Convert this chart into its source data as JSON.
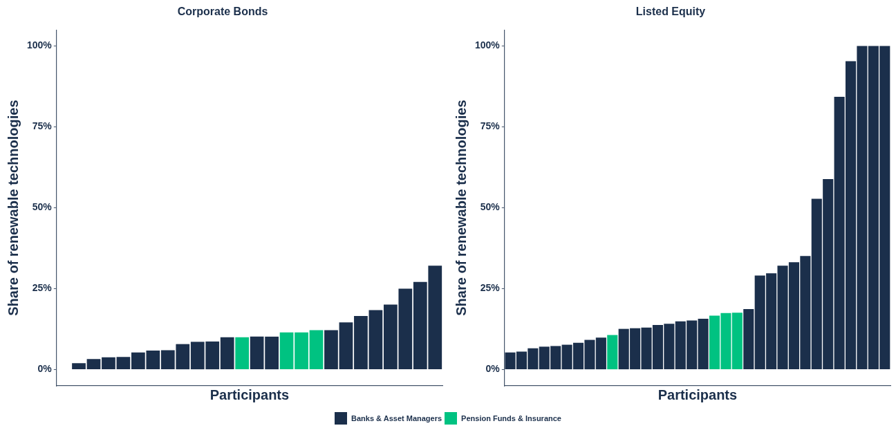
{
  "chart_data": [
    {
      "type": "bar",
      "title": "Corporate Bonds",
      "xlabel": "Participants",
      "ylabel": "Share of renewable technologies",
      "stacked": true,
      "legend": "bottom",
      "grid": false,
      "categories": [
        null,
        null,
        null,
        null,
        null,
        null,
        null,
        null,
        null,
        null,
        null,
        null,
        null,
        null,
        null,
        null,
        null,
        null,
        null,
        null,
        null,
        null,
        null,
        null,
        null,
        null
      ],
      "series": [
        {
          "name": "Banks & Asset Managers",
          "color": "#1b2f4b",
          "values": [
            0,
            2.0,
            3.3,
            3.8,
            3.9,
            5.3,
            5.9,
            6.0,
            7.9,
            8.6,
            8.7,
            10.0,
            null,
            10.2,
            10.2,
            null,
            null,
            null,
            12.2,
            14.6,
            16.6,
            18.4,
            20.1,
            25.0,
            27.1,
            32.1
          ]
        },
        {
          "name": "Pension Funds & Insurance",
          "color": "#00c281",
          "values": [
            null,
            null,
            null,
            null,
            null,
            null,
            null,
            null,
            null,
            null,
            null,
            null,
            10.0,
            null,
            null,
            11.5,
            11.5,
            12.2,
            null,
            null,
            null,
            null,
            null,
            null,
            null,
            null
          ]
        }
      ],
      "ylim": [
        -5,
        105
      ],
      "yticks": [
        {
          "value": 0,
          "label": "0%"
        },
        {
          "value": 25,
          "label": "25%"
        },
        {
          "value": 50,
          "label": "50%"
        },
        {
          "value": 75,
          "label": "75%"
        },
        {
          "value": 100,
          "label": "100%"
        }
      ]
    },
    {
      "type": "bar",
      "title": "Listed Equity",
      "xlabel": "Participants",
      "ylabel": "Share of renewable technologies",
      "stacked": true,
      "grid": false,
      "categories": [
        null,
        null,
        null,
        null,
        null,
        null,
        null,
        null,
        null,
        null,
        null,
        null,
        null,
        null,
        null,
        null,
        null,
        null,
        null,
        null,
        null,
        null,
        null,
        null,
        null,
        null,
        null,
        null,
        null,
        null,
        null,
        null,
        null,
        null
      ],
      "series": [
        {
          "color": "#1b2f4b",
          "values": [
            5.3,
            5.6,
            6.6,
            7.1,
            7.3,
            7.7,
            8.3,
            9.2,
            9.9,
            null,
            12.6,
            12.8,
            13.0,
            13.8,
            14.2,
            14.9,
            15.2,
            15.7,
            null,
            null,
            null,
            18.7,
            29.1,
            29.8,
            32.1,
            33.2,
            35.1,
            52.8,
            58.9,
            84.3,
            95.3,
            100,
            100,
            100
          ]
        },
        {
          "color": "#00c281",
          "values": [
            null,
            null,
            null,
            null,
            null,
            null,
            null,
            null,
            null,
            10.7,
            null,
            null,
            null,
            null,
            null,
            null,
            null,
            null,
            16.7,
            17.5,
            17.6,
            null,
            null,
            null,
            null,
            null,
            null,
            null,
            null,
            null,
            null,
            null,
            null,
            null
          ]
        }
      ],
      "ylim": [
        -5,
        105
      ],
      "yticks": [
        {
          "value": 0,
          "label": "0%"
        },
        {
          "value": 25,
          "label": "25%"
        },
        {
          "value": 50,
          "label": "50%"
        },
        {
          "value": 75,
          "label": "75%"
        },
        {
          "value": 100,
          "label": "100%"
        }
      ]
    }
  ]
}
